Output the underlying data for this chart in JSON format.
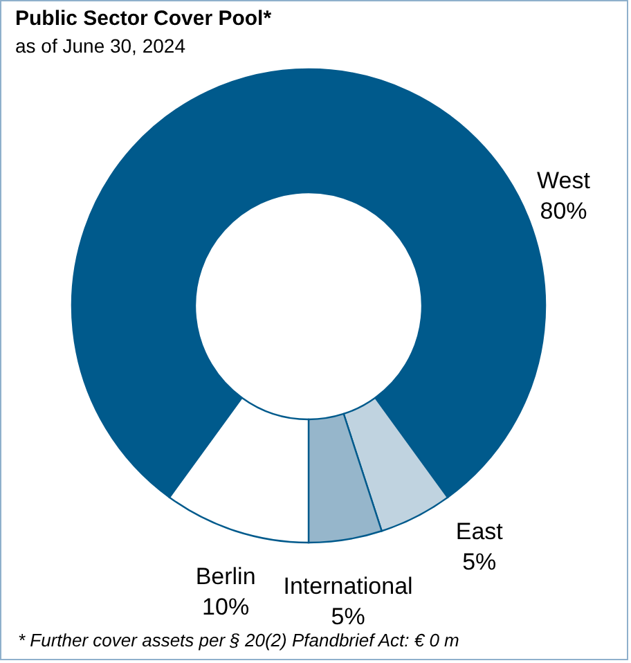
{
  "chart_data": {
    "type": "donut",
    "title": "Public Sector Cover Pool*",
    "subtitle": "as of June 30, 2024",
    "categories": [
      "West",
      "East",
      "International",
      "Berlin"
    ],
    "values": [
      80,
      5,
      5,
      10
    ],
    "colors": [
      "#005a8c",
      "#c0d3e0",
      "#96b6cb",
      "#ffffff"
    ],
    "value_labels": [
      "80%",
      "5%",
      "5%",
      "10%"
    ],
    "annotations": [
      "* Further cover assets per § 20(2) Pfandbrief Act:  € 0 m"
    ]
  }
}
